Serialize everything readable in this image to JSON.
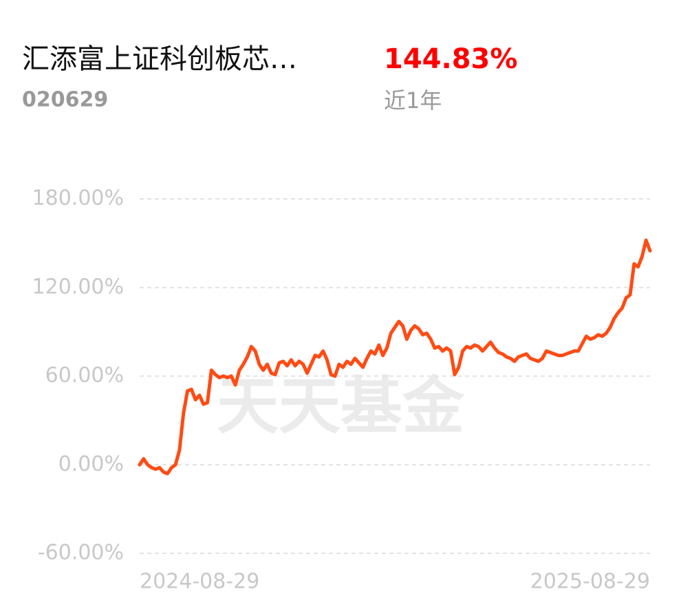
{
  "chart_data": {
    "type": "line",
    "title": "汇添富上证科创板芯…",
    "code": "020629",
    "change": "144.83%",
    "period": "近1年",
    "watermark": "天天基金",
    "categories": [
      "2024-08-29",
      null,
      null,
      null,
      null,
      null,
      null,
      null,
      null,
      null,
      null,
      null,
      null,
      null,
      null,
      null,
      null,
      null,
      null,
      null,
      null,
      null,
      null,
      null,
      null,
      null,
      null,
      null,
      null,
      null,
      null,
      null,
      null,
      null,
      null,
      null,
      null,
      null,
      null,
      null,
      null,
      null,
      null,
      null,
      null,
      null,
      null,
      null,
      null,
      null,
      null,
      null,
      null,
      null,
      null,
      null,
      null,
      null,
      null,
      null,
      null,
      null,
      null,
      null,
      null,
      null,
      null,
      null,
      null,
      null,
      null,
      null,
      null,
      null,
      null,
      null,
      null,
      null,
      null,
      null,
      null,
      null,
      null,
      null,
      null,
      null,
      null,
      null,
      null,
      null,
      null,
      null,
      null,
      null,
      null,
      null,
      null,
      null,
      null,
      null,
      null,
      null,
      null,
      null,
      null,
      null,
      null,
      null,
      null,
      null,
      null,
      null,
      null,
      null,
      null,
      null,
      null,
      null,
      null,
      null,
      null,
      null,
      null,
      null,
      null,
      null,
      null,
      null,
      "2025-08-29"
    ],
    "series": [
      {
        "color": "#ff4b14",
        "values": [
          0,
          4,
          0,
          -2,
          -3,
          -2,
          -5,
          -6,
          -2,
          0,
          10,
          35,
          50,
          51,
          44,
          47,
          41,
          42,
          64,
          61,
          59,
          60,
          59,
          60,
          54,
          64,
          68,
          73,
          80,
          77,
          68,
          64,
          68,
          62,
          61,
          69,
          70,
          67,
          71,
          67,
          70,
          68,
          62,
          68,
          74,
          73,
          77,
          71,
          61,
          60,
          68,
          66,
          70,
          68,
          72,
          69,
          66,
          72,
          77,
          75,
          81,
          74,
          79,
          89,
          93,
          97,
          94,
          85,
          91,
          94,
          92,
          88,
          89,
          85,
          79,
          80,
          77,
          79,
          77,
          61,
          66,
          77,
          80,
          79,
          81,
          80,
          77,
          80,
          83,
          79,
          76,
          75,
          73,
          72,
          70,
          73,
          74,
          75,
          72,
          71,
          70,
          72,
          77,
          76,
          75,
          74,
          74,
          75,
          76,
          77,
          77,
          82,
          87,
          85,
          86,
          88,
          87,
          89,
          93,
          99,
          103,
          106,
          113,
          115,
          136,
          134,
          141,
          152,
          144.83
        ]
      }
    ],
    "ylim": [
      -60,
      180
    ],
    "yticks": [
      {
        "value": -60,
        "label": "-60.00%"
      },
      {
        "value": 0,
        "label": "0.00%"
      },
      {
        "value": 60,
        "label": "60.00%"
      },
      {
        "value": 120,
        "label": "120.00%"
      },
      {
        "value": 180,
        "label": "180.00%"
      }
    ],
    "grid": true
  }
}
